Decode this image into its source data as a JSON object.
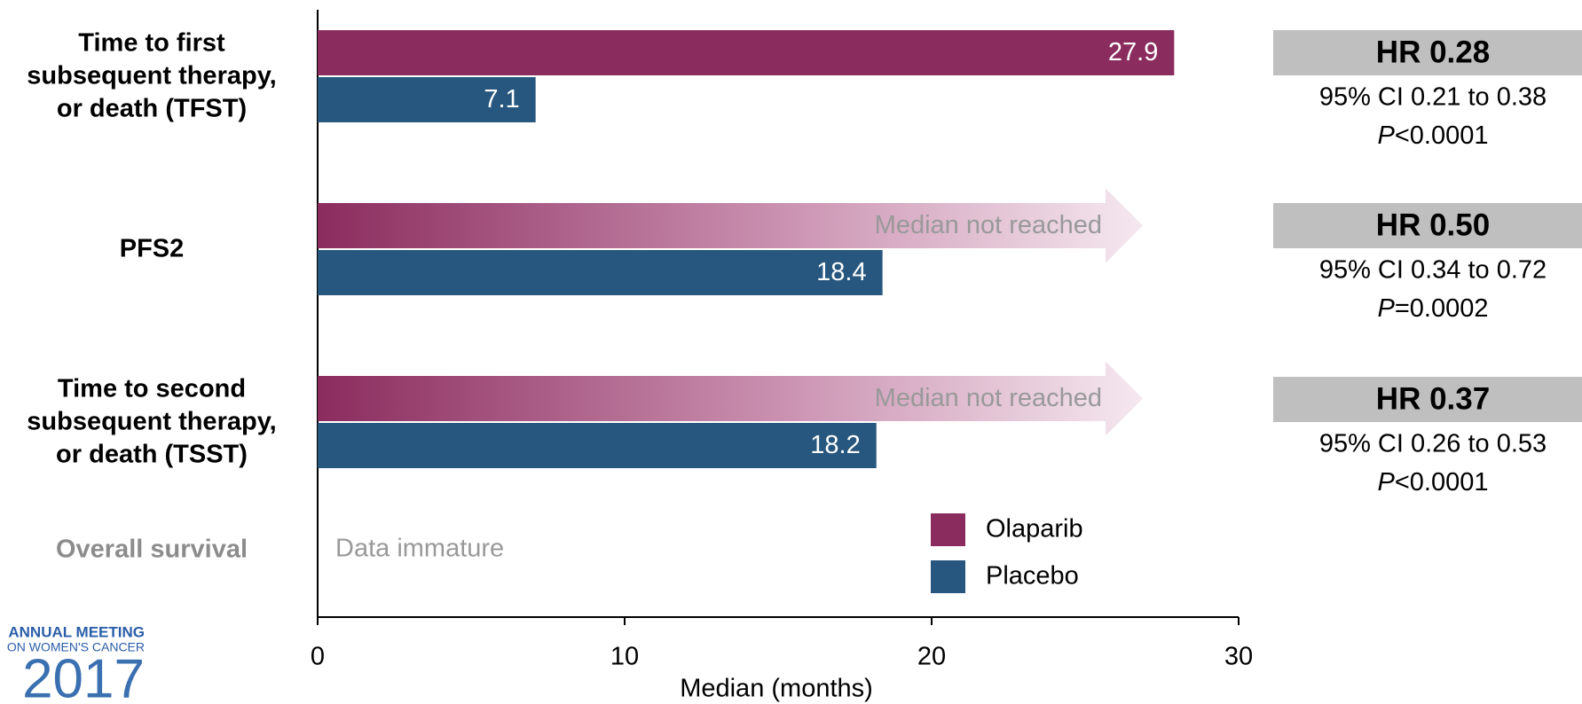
{
  "chart_data": {
    "type": "bar",
    "orientation": "horizontal",
    "x_label": "Median (months)",
    "categories": [
      "Time to first\nsubsequent therapy,\nor death (TFST)",
      "PFS2",
      "Time to second\nsubsequent therapy,\nor death (TSST)",
      "Overall survival"
    ],
    "category_colors": [
      "#000000",
      "#000000",
      "#000000",
      "#8c8c8c"
    ],
    "series": [
      {
        "name": "Olaparib",
        "color": "#8b2c5e",
        "values": [
          27.9,
          null,
          null,
          null
        ],
        "value_labels": [
          "27.9",
          "Median not reached",
          "Median not reached",
          null
        ]
      },
      {
        "name": "Placebo",
        "color": "#27577f",
        "values": [
          7.1,
          18.4,
          18.2,
          null
        ]
      }
    ],
    "annotations": [
      {
        "category": 3,
        "text": "Data immature"
      }
    ],
    "xlim": [
      0,
      30
    ],
    "xticks": [
      0,
      10,
      20,
      30
    ],
    "hazard_ratios": [
      {
        "hr": "HR 0.28",
        "ci": "95% CI 0.21 to 0.38",
        "p_symbol": "P",
        "p_value": "<0.0001"
      },
      {
        "hr": "HR 0.50",
        "ci": "95% CI 0.34 to 0.72",
        "p_symbol": "P",
        "p_value": "=0.0002"
      },
      {
        "hr": "HR 0.37",
        "ci": "95% CI 0.26 to 0.53",
        "p_symbol": "P",
        "p_value": "<0.0001"
      }
    ],
    "logo": {
      "line1": "ANNUAL MEETING",
      "line2": "ON WOMEN'S CANCER",
      "year": "2017"
    }
  }
}
